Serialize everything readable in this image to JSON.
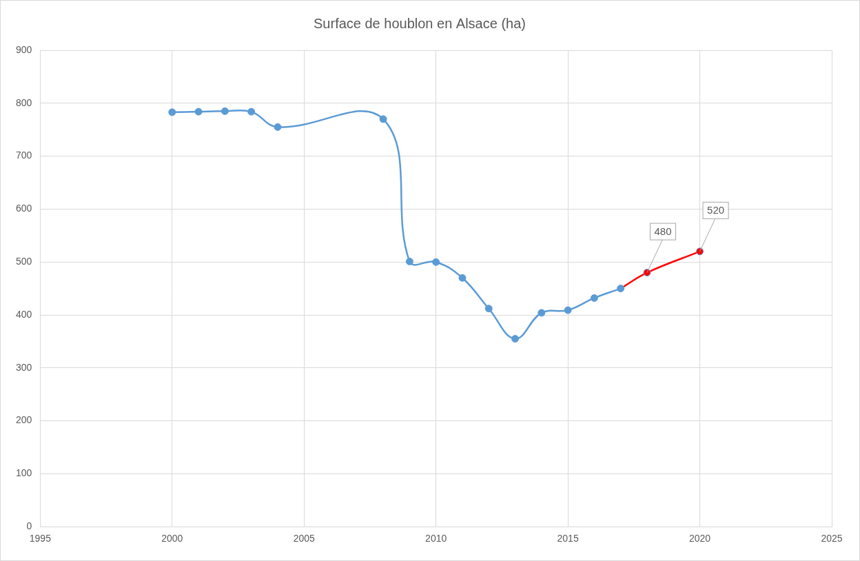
{
  "chart_data": {
    "type": "line",
    "title": "Surface de houblon en Alsace (ha)",
    "series": [
      {
        "color": "#5b9bd5",
        "marker": "circle",
        "line_style": "smooth",
        "x": [
          2000,
          2001,
          2002,
          2003,
          2004,
          2008,
          2009,
          2010,
          2011,
          2012,
          2013,
          2014,
          2015,
          2016,
          2017
        ],
        "values": [
          783,
          784,
          785,
          784,
          755,
          770,
          501,
          500,
          470,
          412,
          355,
          404,
          409,
          432,
          450
        ]
      },
      {
        "color": "#ff0000",
        "marker": "circle",
        "line_style": "smooth",
        "data_labels": true,
        "x": [
          2018,
          2020
        ],
        "values": [
          480,
          520
        ]
      }
    ],
    "xlim": [
      1995,
      2025
    ],
    "xticks": [
      1995,
      2000,
      2005,
      2010,
      2015,
      2020,
      2025
    ],
    "ylim": [
      0,
      900
    ],
    "yticks": [
      0,
      100,
      200,
      300,
      400,
      500,
      600,
      700,
      800,
      900
    ],
    "grid": true
  }
}
